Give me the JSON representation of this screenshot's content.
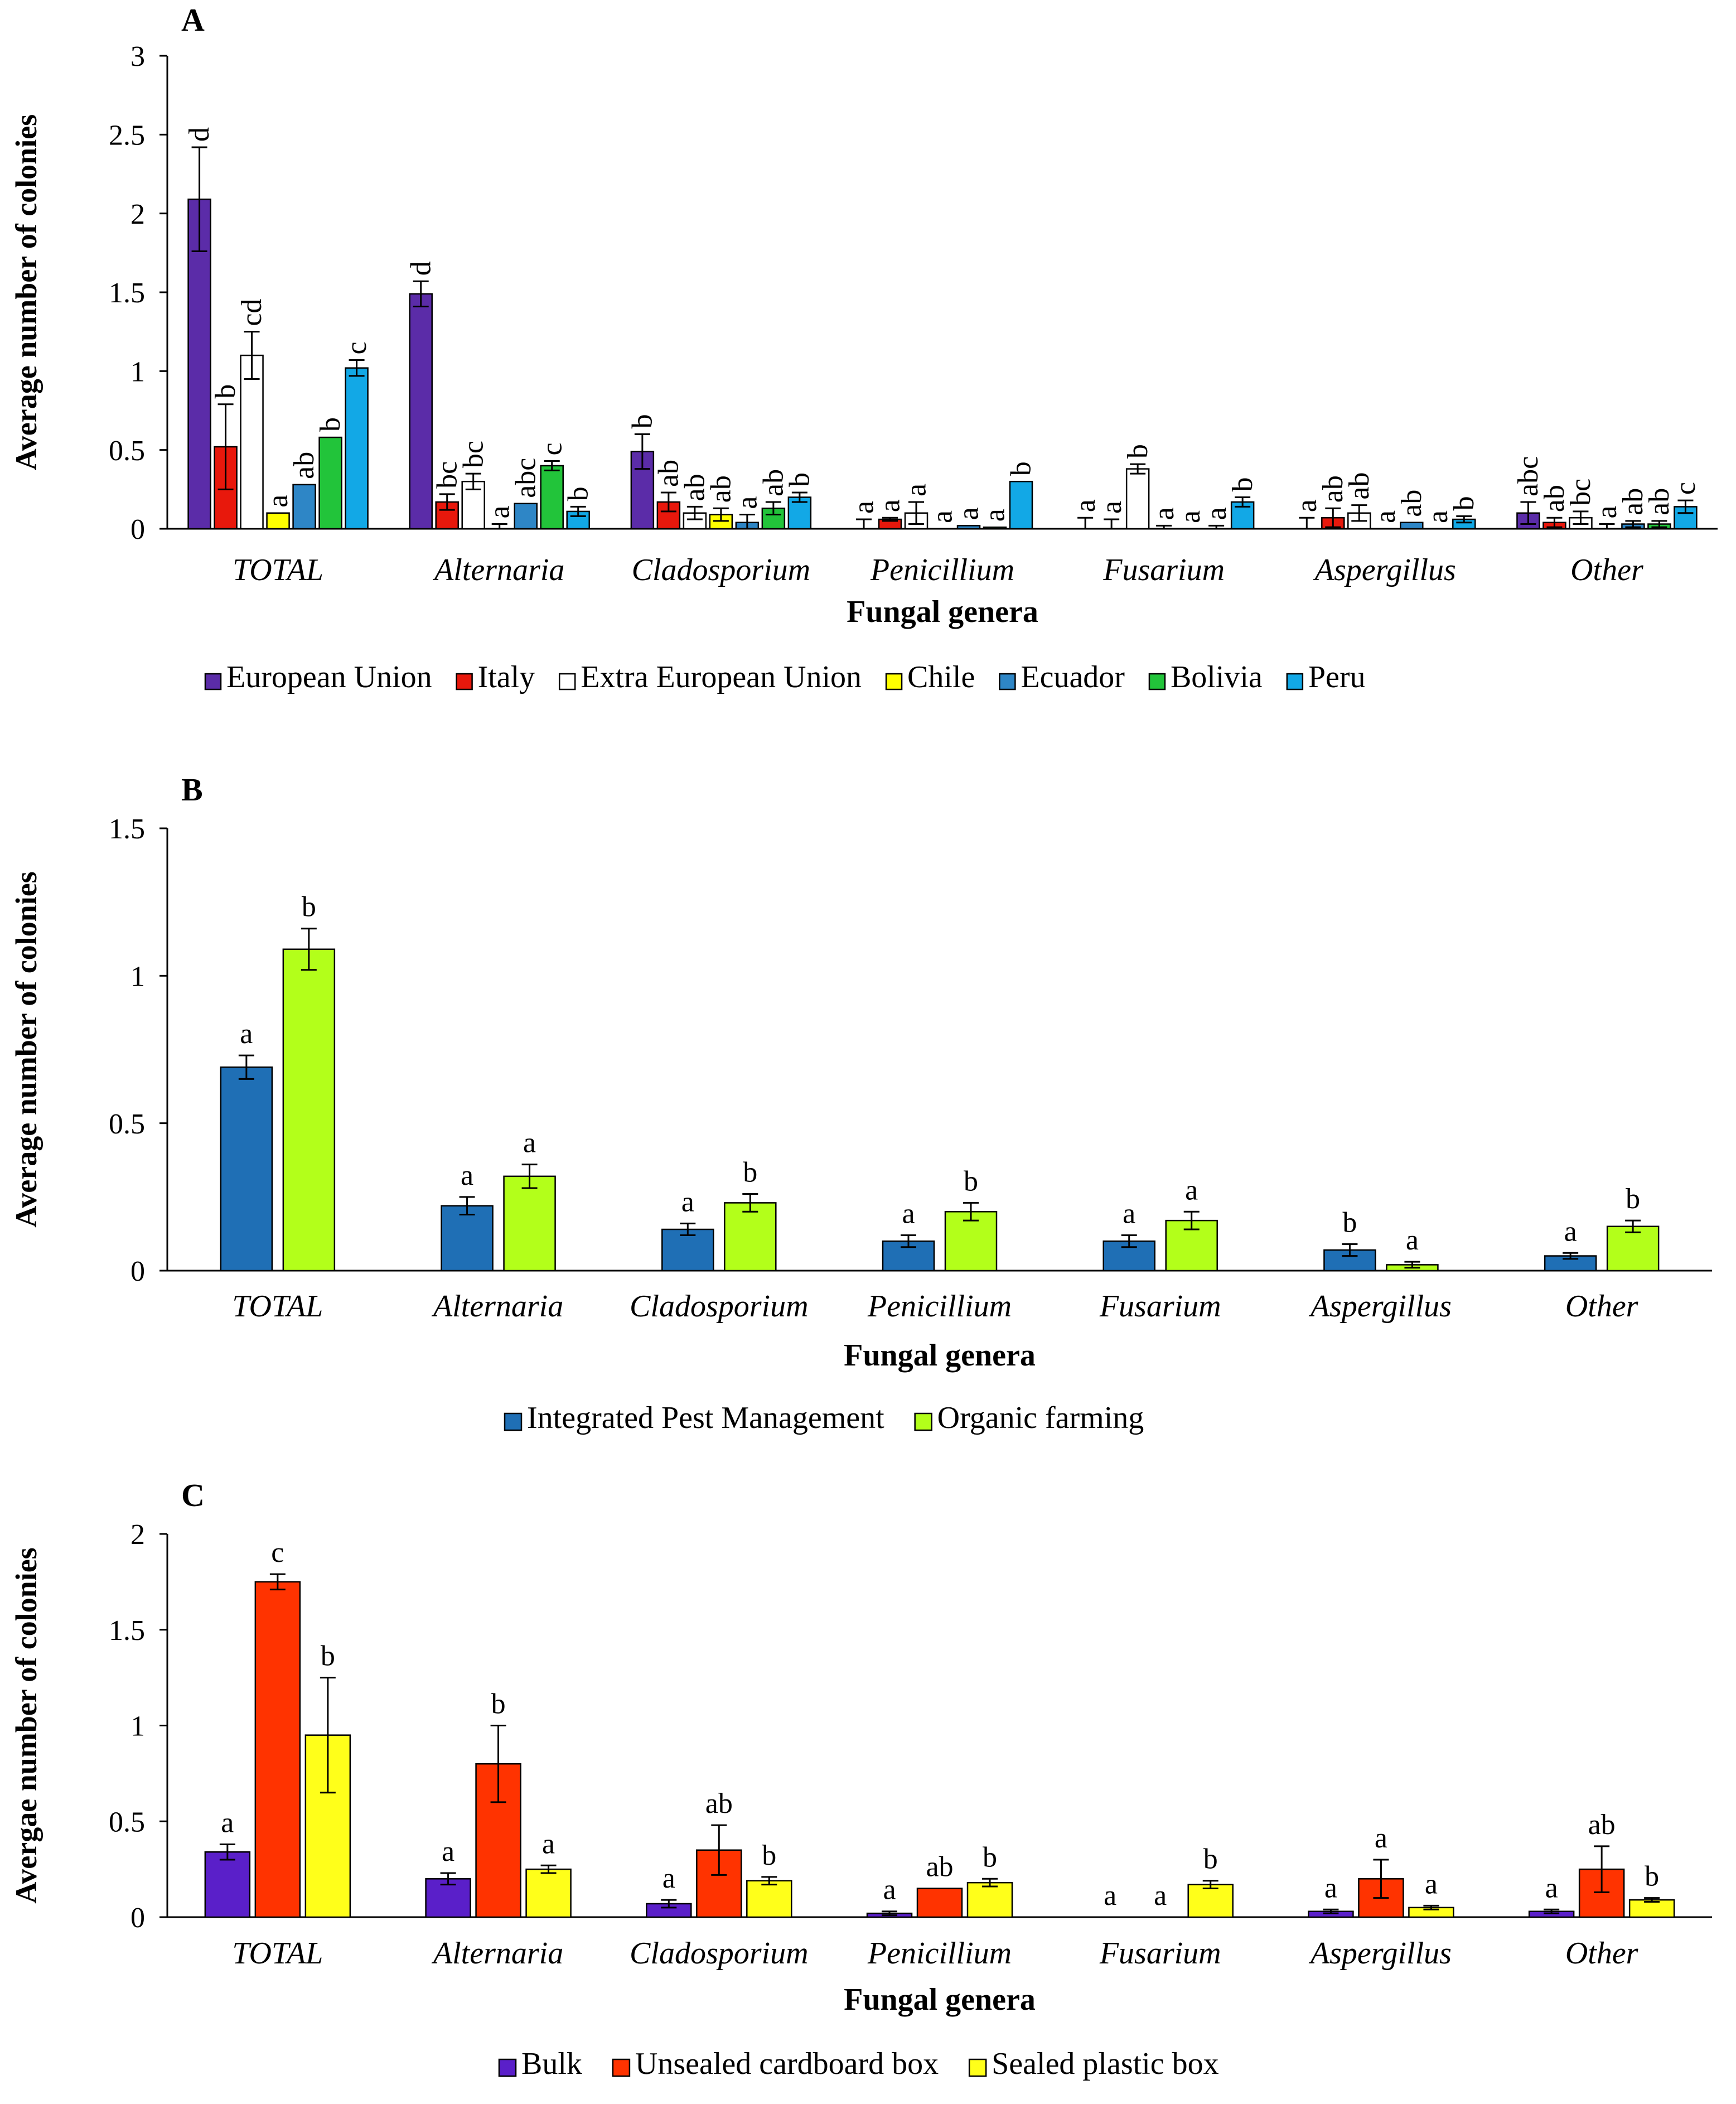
{
  "chart_data": [
    {
      "panel_label": "A",
      "type": "bar",
      "xlabel": "Fungal genera",
      "ylabel": "Average number of colonies",
      "ylim": [
        0,
        3
      ],
      "yticks": [
        "0",
        "0.5",
        "1",
        "1.5",
        "2",
        "2.5",
        "3"
      ],
      "grid": false,
      "legend_position": "bottom",
      "letter_orientation": "vertical",
      "categories": [
        "TOTAL",
        "Alternaria",
        "Cladosporium",
        "Penicillium",
        "Fusarium",
        "Aspergillus",
        "Other"
      ],
      "series": [
        {
          "name": "European Union",
          "color": "#5B2CA8",
          "hollow": false,
          "values": [
            2.09,
            1.49,
            0.49,
            0.0,
            0.0,
            0.0,
            0.1
          ],
          "errors": [
            0.33,
            0.08,
            0.11,
            0.06,
            0.07,
            0.07,
            0.07
          ],
          "letters": [
            "d",
            "d",
            "b",
            "a",
            "a",
            "a",
            "abc"
          ]
        },
        {
          "name": "Italy",
          "color": "#E8180C",
          "hollow": false,
          "values": [
            0.52,
            0.17,
            0.17,
            0.06,
            0.0,
            0.07,
            0.04
          ],
          "errors": [
            0.27,
            0.05,
            0.06,
            0.01,
            0.06,
            0.06,
            0.03
          ],
          "letters": [
            "b",
            "bc",
            "ab",
            "a",
            "a",
            "ab",
            "ab"
          ]
        },
        {
          "name": "Extra European Union",
          "color": "#FFFFFF",
          "hollow": true,
          "values": [
            1.1,
            0.3,
            0.1,
            0.1,
            0.38,
            0.1,
            0.07
          ],
          "errors": [
            0.15,
            0.05,
            0.04,
            0.07,
            0.03,
            0.05,
            0.04
          ],
          "letters": [
            "cd",
            "bc",
            "ab",
            "a",
            "b",
            "ab",
            "bc"
          ]
        },
        {
          "name": "Chile",
          "color": "#FFFF00",
          "hollow": false,
          "values": [
            0.1,
            0.0,
            0.09,
            0.0,
            0.0,
            0.0,
            0.0
          ],
          "errors": [
            0.0,
            0.03,
            0.04,
            0.0,
            0.02,
            0.0,
            0.03
          ],
          "letters": [
            "a",
            "a",
            "ab",
            "a",
            "a",
            "a",
            "a"
          ]
        },
        {
          "name": "Ecuador",
          "color": "#2E86C6",
          "hollow": false,
          "values": [
            0.28,
            0.16,
            0.04,
            0.02,
            0.0,
            0.04,
            0.03
          ],
          "errors": [
            0.0,
            0.0,
            0.05,
            0.0,
            0.0,
            0.0,
            0.02
          ],
          "letters": [
            "ab",
            "abc",
            "a",
            "a",
            "a",
            "ab",
            "ab"
          ]
        },
        {
          "name": "Bolivia",
          "color": "#22C43A",
          "hollow": false,
          "values": [
            0.58,
            0.4,
            0.13,
            0.01,
            0.0,
            0.0,
            0.03
          ],
          "errors": [
            0.0,
            0.03,
            0.04,
            0.0,
            0.02,
            0.0,
            0.02
          ],
          "letters": [
            "b",
            "c",
            "ab",
            "a",
            "a",
            "a",
            "ab"
          ]
        },
        {
          "name": "Peru",
          "color": "#12A8E6",
          "hollow": false,
          "values": [
            1.02,
            0.11,
            0.2,
            0.3,
            0.17,
            0.06,
            0.14
          ],
          "errors": [
            0.05,
            0.03,
            0.03,
            0.0,
            0.03,
            0.02,
            0.04
          ],
          "letters": [
            "c",
            "b",
            "b",
            "b",
            "b",
            "b",
            "c"
          ]
        }
      ]
    },
    {
      "panel_label": "B",
      "type": "bar",
      "xlabel": "Fungal genera",
      "ylabel": "Average number of colonies",
      "ylim": [
        0,
        1.5
      ],
      "yticks": [
        "0",
        "0.5",
        "1",
        "1.5"
      ],
      "grid": false,
      "legend_position": "bottom",
      "letter_orientation": "horizontal",
      "categories": [
        "TOTAL",
        "Alternaria",
        "Cladosporium",
        "Penicillium",
        "Fusarium",
        "Aspergillus",
        "Other"
      ],
      "series": [
        {
          "name": "Integrated Pest Management",
          "color": "#1F6FB5",
          "hollow": false,
          "values": [
            0.69,
            0.22,
            0.14,
            0.1,
            0.1,
            0.07,
            0.05
          ],
          "errors": [
            0.04,
            0.03,
            0.02,
            0.02,
            0.02,
            0.02,
            0.01
          ],
          "letters": [
            "a",
            "a",
            "a",
            "a",
            "a",
            "b",
            "a"
          ]
        },
        {
          "name": "Organic farming",
          "color": "#B3FF1A",
          "hollow": false,
          "values": [
            1.09,
            0.32,
            0.23,
            0.2,
            0.17,
            0.02,
            0.15
          ],
          "errors": [
            0.07,
            0.04,
            0.03,
            0.03,
            0.03,
            0.01,
            0.02
          ],
          "letters": [
            "b",
            "a",
            "b",
            "b",
            "a",
            "a",
            "b"
          ]
        }
      ]
    },
    {
      "panel_label": "C",
      "type": "bar",
      "xlabel": "Fungal genera",
      "ylabel": "Avergae number of colonies",
      "ylim": [
        0,
        2
      ],
      "yticks": [
        "0",
        "0.5",
        "1",
        "1.5",
        "2"
      ],
      "grid": false,
      "legend_position": "bottom",
      "letter_orientation": "horizontal",
      "categories": [
        "TOTAL",
        "Alternaria",
        "Cladosporium",
        "Penicillium",
        "Fusarium",
        "Aspergillus",
        "Other"
      ],
      "series": [
        {
          "name": "Bulk",
          "color": "#5A1FC9",
          "hollow": false,
          "values": [
            0.34,
            0.2,
            0.07,
            0.02,
            0.0,
            0.03,
            0.03
          ],
          "errors": [
            0.04,
            0.03,
            0.02,
            0.01,
            0.0,
            0.01,
            0.01
          ],
          "letters": [
            "a",
            "a",
            "a",
            "a",
            "a",
            "a",
            "a"
          ]
        },
        {
          "name": "Unsealed cardboard box",
          "color": "#FF3300",
          "hollow": false,
          "values": [
            1.75,
            0.8,
            0.35,
            0.15,
            0.0,
            0.2,
            0.25
          ],
          "errors": [
            0.04,
            0.2,
            0.13,
            0.0,
            0.0,
            0.1,
            0.12
          ],
          "letters": [
            "c",
            "b",
            "ab",
            "ab",
            "a",
            "a",
            "ab"
          ]
        },
        {
          "name": "Sealed plastic box",
          "color": "#FFFF1A",
          "hollow": false,
          "values": [
            0.95,
            0.25,
            0.19,
            0.18,
            0.17,
            0.05,
            0.09
          ],
          "errors": [
            0.3,
            0.02,
            0.02,
            0.02,
            0.02,
            0.01,
            0.01
          ],
          "letters": [
            "b",
            "a",
            "b",
            "b",
            "b",
            "a",
            "b"
          ]
        }
      ]
    }
  ]
}
